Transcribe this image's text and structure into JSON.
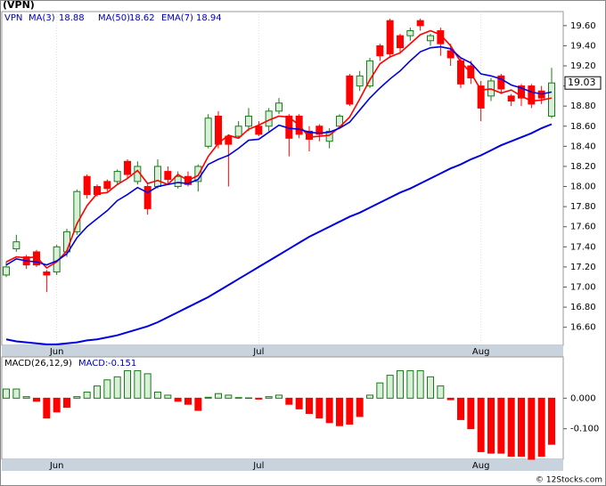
{
  "chart_data": {
    "type": "candlestick",
    "title": "(VPN)",
    "watermark": "© 12Stocks.com",
    "symbol": "VPN",
    "categories": [
      null,
      null,
      null,
      null,
      null,
      "Jun",
      null,
      null,
      null,
      null,
      null,
      null,
      null,
      null,
      null,
      null,
      null,
      null,
      null,
      null,
      null,
      null,
      null,
      null,
      null,
      "Jul",
      null,
      null,
      null,
      null,
      null,
      null,
      null,
      null,
      null,
      null,
      null,
      null,
      null,
      null,
      null,
      null,
      null,
      null,
      null,
      null,
      null,
      "Aug",
      null,
      null,
      null,
      null,
      null,
      null,
      null
    ],
    "open": [
      17.12,
      17.38,
      17.3,
      17.35,
      17.15,
      17.15,
      17.35,
      17.55,
      18.1,
      18.0,
      18.05,
      18.05,
      18.25,
      18.05,
      18.0,
      18.0,
      18.15,
      18.0,
      18.1,
      18.05,
      18.4,
      18.7,
      18.5,
      18.5,
      18.6,
      18.6,
      18.6,
      18.75,
      18.7,
      18.7,
      18.55,
      18.6,
      18.45,
      18.6,
      19.1,
      19.0,
      19.0,
      19.4,
      19.65,
      19.5,
      19.5,
      19.65,
      19.45,
      19.55,
      19.35,
      19.25,
      19.2,
      19.0,
      18.9,
      19.1,
      18.9,
      19.0,
      19.0,
      18.95,
      18.7
    ],
    "high": [
      17.25,
      17.52,
      17.32,
      17.37,
      17.17,
      17.42,
      17.58,
      17.97,
      18.12,
      18.02,
      18.07,
      18.17,
      18.27,
      18.25,
      18.02,
      18.27,
      18.2,
      18.15,
      18.15,
      18.22,
      18.72,
      18.75,
      18.52,
      18.65,
      18.78,
      18.65,
      18.78,
      18.88,
      18.72,
      18.72,
      18.6,
      18.62,
      18.58,
      18.72,
      19.12,
      19.15,
      19.28,
      19.42,
      19.67,
      19.52,
      19.58,
      19.67,
      19.52,
      19.58,
      19.42,
      19.28,
      19.25,
      19.05,
      19.08,
      19.12,
      18.92,
      19.02,
      19.02,
      19.0,
      19.18
    ],
    "low": [
      17.1,
      17.35,
      17.18,
      17.2,
      16.95,
      17.12,
      17.3,
      17.52,
      17.88,
      17.9,
      17.95,
      18.02,
      18.08,
      18.02,
      17.72,
      17.98,
      18.02,
      17.98,
      18.0,
      17.95,
      18.38,
      18.38,
      18.0,
      18.48,
      18.55,
      18.5,
      18.55,
      18.72,
      18.3,
      18.48,
      18.35,
      18.45,
      18.38,
      18.58,
      18.8,
      18.95,
      18.98,
      19.25,
      19.28,
      19.32,
      19.45,
      19.55,
      19.4,
      19.3,
      19.2,
      18.98,
      19.02,
      18.65,
      18.85,
      18.92,
      18.8,
      18.8,
      18.78,
      18.82,
      18.68
    ],
    "close": [
      17.2,
      17.45,
      17.22,
      17.22,
      17.12,
      17.4,
      17.55,
      17.95,
      17.92,
      17.92,
      17.98,
      18.15,
      18.12,
      18.2,
      17.78,
      18.2,
      18.07,
      18.1,
      18.02,
      18.2,
      18.68,
      18.42,
      18.42,
      18.6,
      18.7,
      18.52,
      18.75,
      18.83,
      18.48,
      18.52,
      18.47,
      18.52,
      18.55,
      18.7,
      18.82,
      19.1,
      19.25,
      19.3,
      19.32,
      19.38,
      19.55,
      19.6,
      19.5,
      19.42,
      19.28,
      19.02,
      19.08,
      18.78,
      19.05,
      18.97,
      18.85,
      18.88,
      18.82,
      18.88,
      19.03
    ],
    "up_color": "#1a7a1a",
    "up_fill": "#d8f0d8",
    "down_color": "#ff0000",
    "last_price": {
      "value": 19.03,
      "label": "19.03"
    },
    "series": [
      {
        "name": "MA(3)",
        "last_value_label": "18.88",
        "color": "#ff0000",
        "values": [
          17.25,
          17.3,
          17.29,
          17.3,
          17.19,
          17.25,
          17.36,
          17.63,
          17.81,
          17.93,
          17.94,
          18.02,
          18.08,
          18.16,
          18.03,
          18.06,
          18.02,
          18.12,
          18.06,
          18.11,
          18.3,
          18.43,
          18.51,
          18.48,
          18.57,
          18.61,
          18.66,
          18.7,
          18.69,
          18.61,
          18.49,
          18.5,
          18.51,
          18.59,
          18.69,
          18.87,
          19.06,
          19.22,
          19.29,
          19.33,
          19.42,
          19.51,
          19.55,
          19.51,
          19.4,
          19.24,
          19.13,
          18.96,
          18.97,
          18.93,
          18.96,
          18.9,
          18.85,
          18.86,
          18.88
        ]
      },
      {
        "name": "MA(50)",
        "last_value_label": "18.62",
        "color": "#0000e0",
        "values": [
          16.48,
          16.46,
          16.45,
          16.44,
          16.43,
          16.43,
          16.44,
          16.45,
          16.47,
          16.48,
          16.5,
          16.52,
          16.55,
          16.58,
          16.61,
          16.65,
          16.7,
          16.75,
          16.8,
          16.85,
          16.9,
          16.96,
          17.02,
          17.08,
          17.14,
          17.2,
          17.26,
          17.32,
          17.38,
          17.44,
          17.5,
          17.55,
          17.6,
          17.65,
          17.7,
          17.74,
          17.79,
          17.84,
          17.89,
          17.94,
          17.98,
          18.03,
          18.08,
          18.13,
          18.18,
          18.22,
          18.27,
          18.31,
          18.36,
          18.41,
          18.45,
          18.49,
          18.53,
          18.58,
          18.62
        ]
      },
      {
        "name": "EMA(7)",
        "last_value_label": "18.94",
        "color": "#0000e0",
        "values": [
          17.22,
          17.28,
          17.26,
          17.25,
          17.22,
          17.26,
          17.33,
          17.49,
          17.6,
          17.68,
          17.76,
          17.86,
          17.92,
          17.99,
          17.94,
          18.0,
          18.02,
          18.04,
          18.03,
          18.07,
          18.22,
          18.27,
          18.31,
          18.38,
          18.46,
          18.47,
          18.54,
          18.61,
          18.58,
          18.57,
          18.54,
          18.53,
          18.54,
          18.58,
          18.64,
          18.76,
          18.88,
          18.98,
          19.07,
          19.15,
          19.25,
          19.34,
          19.38,
          19.39,
          19.37,
          19.28,
          19.23,
          19.12,
          19.1,
          19.07,
          19.01,
          18.98,
          18.94,
          18.92,
          18.94
        ]
      }
    ],
    "ylim": [
      16.42,
      19.74
    ],
    "yticks": [
      {
        "value": 16.6,
        "label": "16.60"
      },
      {
        "value": 16.8,
        "label": "16.80"
      },
      {
        "value": 17.0,
        "label": "17.00"
      },
      {
        "value": 17.2,
        "label": "17.20"
      },
      {
        "value": 17.4,
        "label": "17.40"
      },
      {
        "value": 17.6,
        "label": "17.60"
      },
      {
        "value": 17.8,
        "label": "17.80"
      },
      {
        "value": 18.0,
        "label": "18.00"
      },
      {
        "value": 18.2,
        "label": "18.20"
      },
      {
        "value": 18.4,
        "label": "18.40"
      },
      {
        "value": 18.6,
        "label": "18.60"
      },
      {
        "value": 18.8,
        "label": "18.80"
      },
      {
        "value": 19.0,
        "label": "19.00"
      },
      {
        "value": 19.2,
        "label": "19.20"
      },
      {
        "value": 19.4,
        "label": "19.40"
      },
      {
        "value": 19.6,
        "label": "19.60"
      }
    ],
    "macd": {
      "name": "MACD(26,12,9)",
      "value_name": "MACD:",
      "last_value": {
        "value": -0.151,
        "label": "-0.151"
      },
      "values": [
        0.03,
        0.03,
        0.005,
        -0.01,
        -0.065,
        -0.045,
        -0.03,
        0.005,
        0.02,
        0.04,
        0.06,
        0.07,
        0.09,
        0.09,
        0.08,
        0.02,
        0.01,
        -0.01,
        -0.02,
        -0.04,
        0.003,
        0.015,
        0.01,
        0.002,
        0.001,
        -0.003,
        0.005,
        0.01,
        -0.02,
        -0.035,
        -0.05,
        -0.065,
        -0.08,
        -0.09,
        -0.085,
        -0.06,
        0.01,
        0.05,
        0.075,
        0.09,
        0.09,
        0.09,
        0.07,
        0.04,
        -0.005,
        -0.07,
        -0.1,
        -0.175,
        -0.18,
        -0.18,
        -0.19,
        -0.19,
        -0.2,
        -0.19,
        -0.151
      ],
      "ylim": [
        -0.2,
        0.135
      ],
      "yticks": [
        {
          "value": 0,
          "label": "0.000"
        },
        {
          "value": -0.1,
          "label": "-0.100"
        }
      ]
    }
  }
}
